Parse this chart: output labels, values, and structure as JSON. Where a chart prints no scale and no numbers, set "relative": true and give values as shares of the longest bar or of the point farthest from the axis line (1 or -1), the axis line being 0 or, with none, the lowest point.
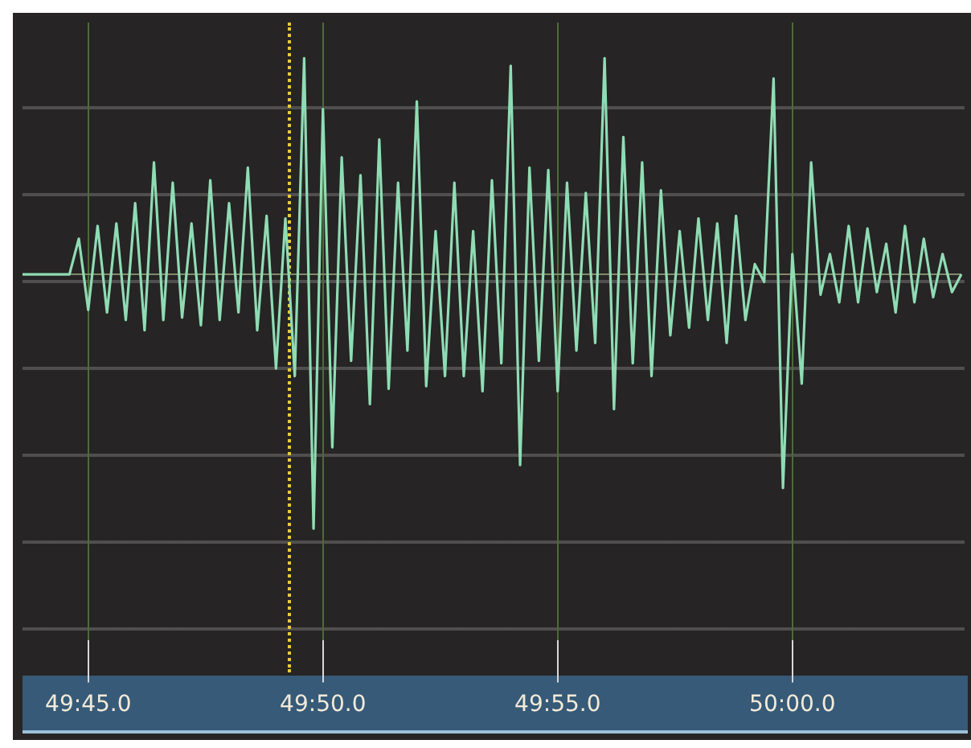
{
  "chart_data": {
    "type": "line",
    "relative": true,
    "color": "#8fdcb4",
    "marker": "none",
    "grid": "x",
    "categories": [
      null,
      null,
      null,
      null,
      null,
      null,
      null,
      "49:45.0",
      null,
      null,
      null,
      null,
      null,
      null,
      null,
      null,
      null,
      null,
      null,
      null,
      null,
      null,
      null,
      null,
      null,
      null,
      null,
      null,
      null,
      null,
      null,
      null,
      "49:50.0",
      null,
      null,
      null,
      null,
      null,
      null,
      null,
      null,
      null,
      null,
      null,
      null,
      null,
      null,
      null,
      null,
      null,
      null,
      null,
      null,
      null,
      null,
      null,
      null,
      "49:55.0",
      null,
      null,
      null,
      null,
      null,
      null,
      null,
      null,
      null,
      null,
      null,
      null,
      null,
      null,
      null,
      null,
      null,
      null,
      null,
      null,
      null,
      null,
      null,
      null,
      "50:00.0",
      null,
      null,
      null,
      null,
      null,
      null,
      null,
      null,
      null,
      null,
      null,
      null,
      null,
      null,
      null,
      null,
      null,
      null
    ],
    "values": [
      0,
      0,
      0,
      0,
      0,
      0,
      0.14,
      -0.14,
      0.19,
      -0.15,
      0.2,
      -0.18,
      0.28,
      -0.22,
      0.44,
      -0.18,
      0.36,
      -0.17,
      0.2,
      -0.2,
      0.37,
      -0.18,
      0.28,
      -0.15,
      0.42,
      -0.22,
      0.23,
      -0.37,
      0.22,
      -0.4,
      0.85,
      -1,
      0.65,
      -0.68,
      0.46,
      -0.34,
      0.39,
      -0.51,
      0.53,
      -0.45,
      0.36,
      -0.3,
      0.68,
      -0.44,
      0.17,
      -0.4,
      0.36,
      -0.4,
      0.17,
      -0.46,
      0.37,
      -0.35,
      0.82,
      -0.75,
      0.42,
      -0.34,
      0.41,
      -0.46,
      0.36,
      -0.3,
      0.32,
      -0.27,
      0.85,
      -0.53,
      0.54,
      -0.35,
      0.44,
      -0.4,
      0.33,
      -0.24,
      0.17,
      -0.21,
      0.22,
      -0.18,
      0.2,
      -0.27,
      0.23,
      -0.18,
      0.04,
      -0.03,
      0.77,
      -0.84,
      0.08,
      -0.43,
      0.44,
      -0.08,
      0.08,
      -0.11,
      0.19,
      -0.11,
      0.18,
      -0.07,
      0.12,
      -0.15,
      0.19,
      -0.11,
      0.14,
      -0.09,
      0.08,
      -0.07,
      0
    ]
  }
}
